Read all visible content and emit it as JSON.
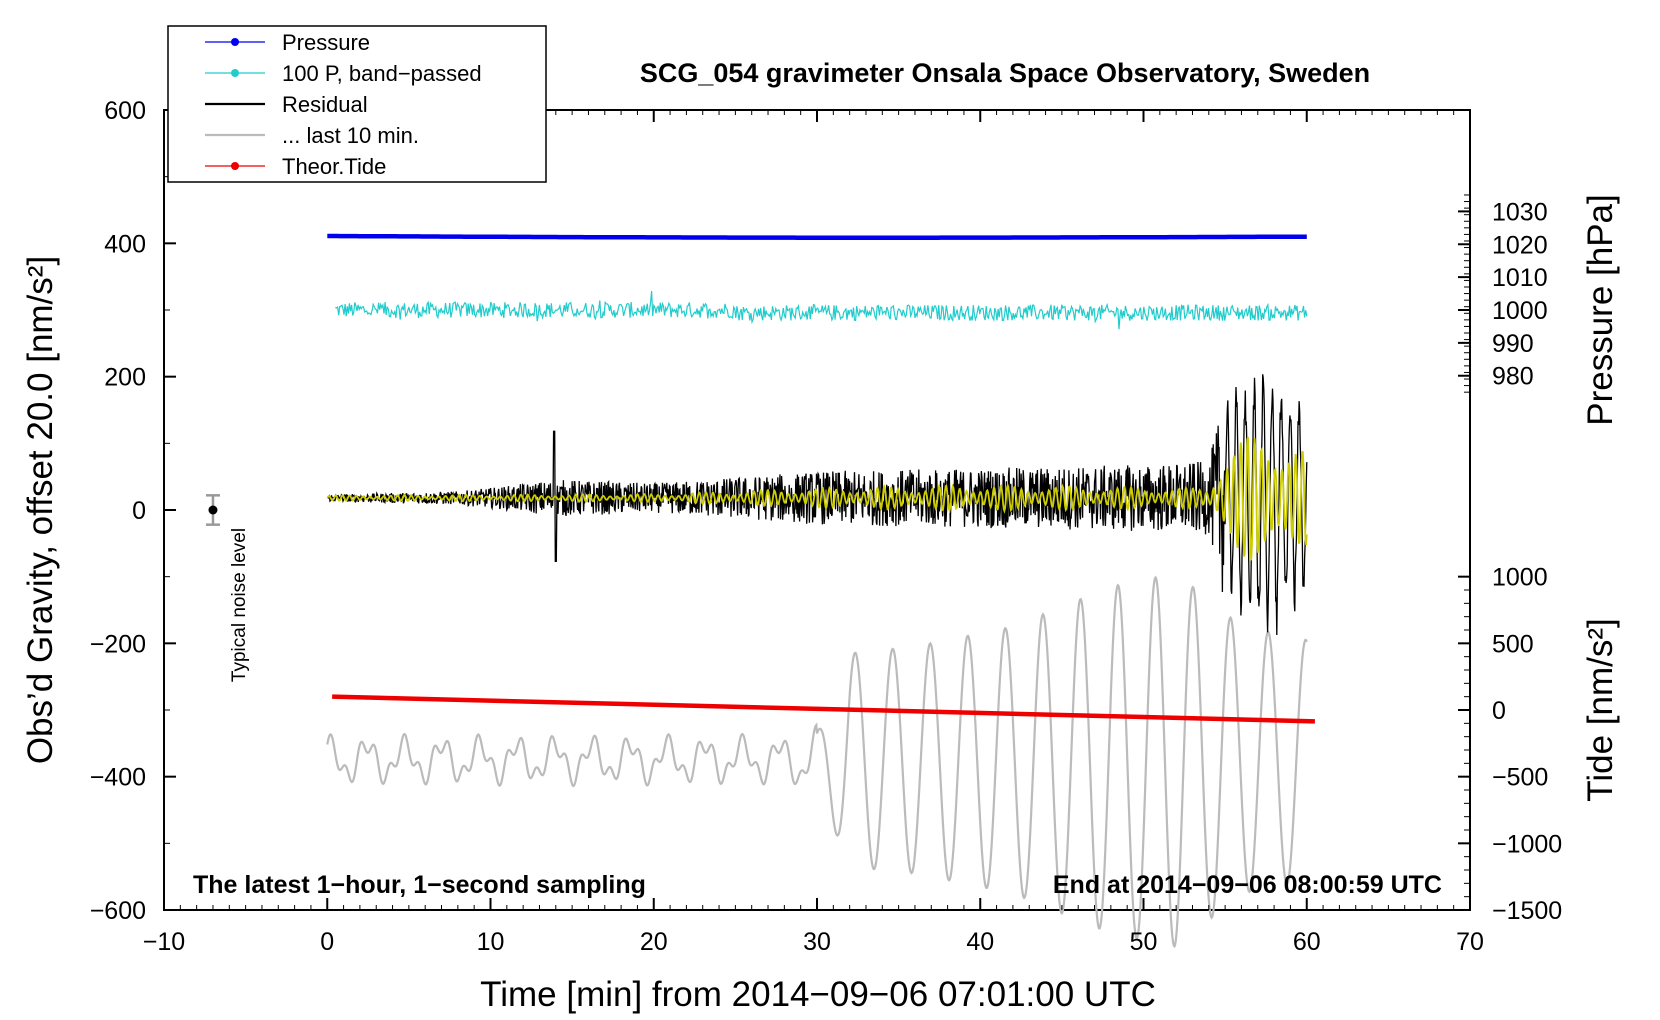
{
  "chart_data": {
    "type": "line",
    "title": "SCG_054 gravimeter Onsala Space Observatory, Sweden",
    "xlabel": "Time [min] from 2014−09−06 07:01:00 UTC",
    "ylabel_left": "Obs’d Gravity, offset 20.0 [nm/s²]",
    "ylabel_right_top": "Pressure [hPa]",
    "ylabel_right_bottom": "Tide [nm/s²]",
    "xlim": [
      -10,
      70
    ],
    "ylim_left": [
      -600,
      600
    ],
    "x_ticks": [
      "−10",
      "0",
      "10",
      "20",
      "30",
      "40",
      "50",
      "60",
      "70"
    ],
    "y_ticks_left": [
      "−600",
      "−400",
      "−200",
      "0",
      "200",
      "400",
      "600"
    ],
    "pressure_ticks": [
      "980",
      "990",
      "1000",
      "1010",
      "1020",
      "1030"
    ],
    "tide_ticks": [
      "−1500",
      "−1000",
      "−500",
      "0",
      "500",
      "1000"
    ],
    "annotation_left": "The latest 1−hour, 1−second sampling",
    "annotation_right": "End at 2014−09−06 08:00:59 UTC",
    "noise_label": "Typical noise level",
    "noise_bar": {
      "x": -7,
      "y": 0,
      "err": 22
    },
    "legend": [
      {
        "label": "Pressure",
        "color": "#0000ee",
        "style": "line-dot"
      },
      {
        "label": "100 P, band−passed",
        "color": "#22cccc",
        "style": "line-dot"
      },
      {
        "label": "Residual",
        "color": "#000000",
        "style": "line"
      },
      {
        "label": "... last 10 min.",
        "color": "#bbbbbb",
        "style": "line"
      },
      {
        "label": "Theor.Tide",
        "color": "#ee0000",
        "style": "line-dot"
      }
    ],
    "series": [
      {
        "name": "Pressure",
        "color": "#0000ee",
        "x_range": [
          0,
          60
        ],
        "y_start": 411,
        "y_end": 410,
        "y_mid": 409
      },
      {
        "name": "100 P, band−passed",
        "color": "#22cccc",
        "x_range": [
          0.5,
          60
        ],
        "center": 300,
        "amplitude": 12
      },
      {
        "name": "Residual",
        "color": "#000000",
        "x_range": [
          0,
          60
        ],
        "center": 18,
        "envelope": [
          [
            0,
            5
          ],
          [
            8,
            10
          ],
          [
            11,
            18
          ],
          [
            14,
            28
          ],
          [
            20,
            22
          ],
          [
            30,
            40
          ],
          [
            40,
            45
          ],
          [
            50,
            50
          ],
          [
            54,
            55
          ],
          [
            55,
            160
          ],
          [
            58,
            220
          ],
          [
            60,
            150
          ]
        ]
      },
      {
        "name": "Residual filtered",
        "color": "#cccc00",
        "x_range": [
          0,
          60
        ],
        "center": 18,
        "envelope": [
          [
            0,
            4
          ],
          [
            20,
            6
          ],
          [
            30,
            15
          ],
          [
            40,
            20
          ],
          [
            54,
            15
          ],
          [
            55,
            80
          ],
          [
            58,
            110
          ],
          [
            60,
            70
          ]
        ]
      },
      {
        "name": "... last 10 min.",
        "color": "#bbbbbb",
        "x_range": [
          0,
          60
        ],
        "center": -375,
        "period_min": 2.3,
        "envelope": [
          [
            0,
            25
          ],
          [
            28,
            25
          ],
          [
            30,
            40
          ],
          [
            32,
            160
          ],
          [
            36,
            170
          ],
          [
            42,
            200
          ],
          [
            48,
            260
          ],
          [
            52,
            280
          ],
          [
            56,
            200
          ],
          [
            60,
            180
          ]
        ]
      },
      {
        "name": "Theor.Tide",
        "color": "#ee0000",
        "x_range": [
          0.3,
          60.5
        ],
        "y_start": -280,
        "y_end": -317
      }
    ]
  }
}
